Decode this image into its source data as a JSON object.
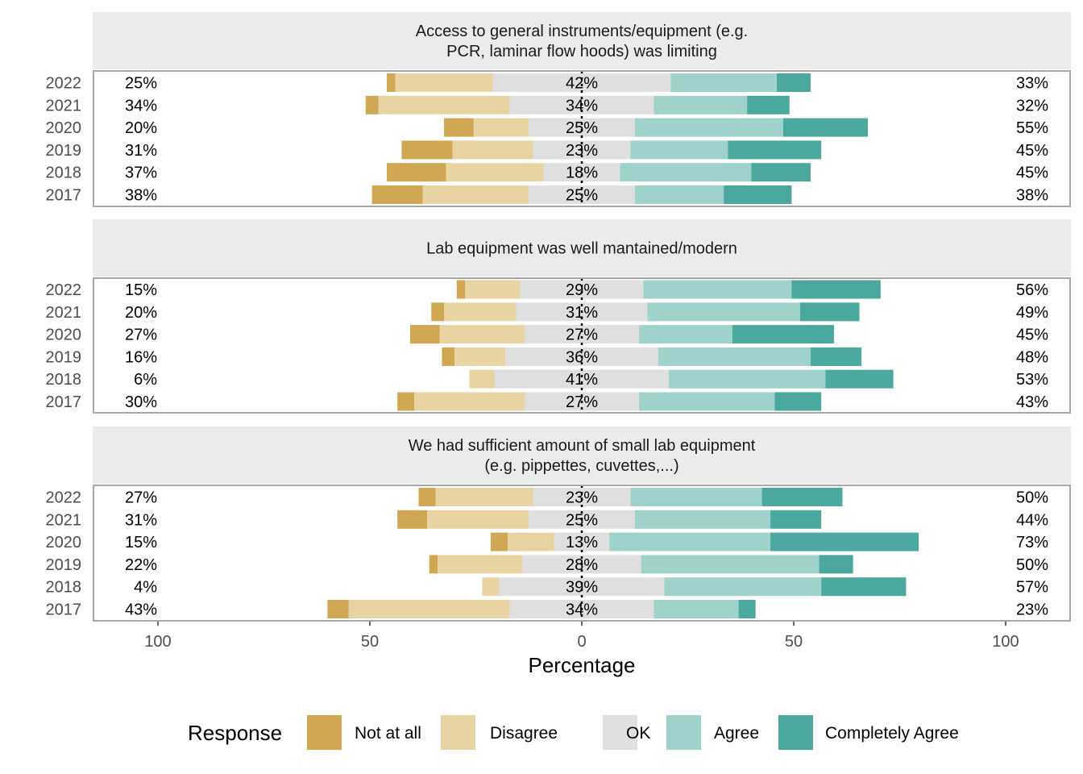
{
  "chart_data": {
    "type": "bar",
    "subtype": "diverging-stacked-likert",
    "xlabel": "Percentage",
    "x_ticks": [
      "100",
      "50",
      "0",
      "50",
      "100"
    ],
    "xlim": [
      -100,
      100
    ],
    "grid": true,
    "legend": {
      "title": "Response",
      "position": "bottom",
      "items": [
        {
          "label": "Not at all",
          "color": "#D0A753"
        },
        {
          "label": "Disagree",
          "color": "#E8D3A2"
        },
        {
          "label": "OK",
          "color": "#DFDFDF"
        },
        {
          "label": "Agree",
          "color": "#9FD2CA"
        },
        {
          "label": "Completely Agree",
          "color": "#4BA89C"
        }
      ]
    },
    "panels": [
      {
        "title": [
          "Access to general instruments/equipment (e.g.",
          "PCR, laminar flow hoods) was limiting"
        ],
        "rows": [
          {
            "year": "2022",
            "not_at_all": 2,
            "disagree": 23,
            "ok": 42,
            "agree": 25,
            "completely_agree": 8,
            "left_label": "25%",
            "center_label": "42%",
            "right_label": "33%"
          },
          {
            "year": "2021",
            "not_at_all": 3,
            "disagree": 31,
            "ok": 34,
            "agree": 22,
            "completely_agree": 10,
            "left_label": "34%",
            "center_label": "34%",
            "right_label": "32%"
          },
          {
            "year": "2020",
            "not_at_all": 7,
            "disagree": 13,
            "ok": 25,
            "agree": 35,
            "completely_agree": 20,
            "left_label": "20%",
            "center_label": "25%",
            "right_label": "55%"
          },
          {
            "year": "2019",
            "not_at_all": 12,
            "disagree": 19,
            "ok": 23,
            "agree": 23,
            "completely_agree": 22,
            "left_label": "31%",
            "center_label": "23%",
            "right_label": "45%"
          },
          {
            "year": "2018",
            "not_at_all": 14,
            "disagree": 23,
            "ok": 18,
            "agree": 31,
            "completely_agree": 14,
            "left_label": "37%",
            "center_label": "18%",
            "right_label": "45%"
          },
          {
            "year": "2017",
            "not_at_all": 12,
            "disagree": 25,
            "ok": 25,
            "agree": 21,
            "completely_agree": 16,
            "left_label": "38%",
            "center_label": "25%",
            "right_label": "38%"
          }
        ]
      },
      {
        "title": [
          "Lab equipment was well mantained/modern"
        ],
        "rows": [
          {
            "year": "2022",
            "not_at_all": 2,
            "disagree": 13,
            "ok": 29,
            "agree": 35,
            "completely_agree": 21,
            "left_label": "15%",
            "center_label": "29%",
            "right_label": "56%"
          },
          {
            "year": "2021",
            "not_at_all": 3,
            "disagree": 17,
            "ok": 31,
            "agree": 36,
            "completely_agree": 14,
            "left_label": "20%",
            "center_label": "31%",
            "right_label": "49%"
          },
          {
            "year": "2020",
            "not_at_all": 7,
            "disagree": 20,
            "ok": 27,
            "agree": 22,
            "completely_agree": 24,
            "left_label": "27%",
            "center_label": "27%",
            "right_label": "45%"
          },
          {
            "year": "2019",
            "not_at_all": 3,
            "disagree": 12,
            "ok": 36,
            "agree": 36,
            "completely_agree": 12,
            "left_label": "16%",
            "center_label": "36%",
            "right_label": "48%"
          },
          {
            "year": "2018",
            "not_at_all": 0,
            "disagree": 6,
            "ok": 41,
            "agree": 37,
            "completely_agree": 16,
            "left_label": "6%",
            "center_label": "41%",
            "right_label": "53%"
          },
          {
            "year": "2017",
            "not_at_all": 4,
            "disagree": 26,
            "ok": 27,
            "agree": 32,
            "completely_agree": 11,
            "left_label": "30%",
            "center_label": "27%",
            "right_label": "43%"
          }
        ]
      },
      {
        "title": [
          "We had sufficient amount of small lab equipment",
          "(e.g. pippettes, cuvettes,...)"
        ],
        "rows": [
          {
            "year": "2022",
            "not_at_all": 4,
            "disagree": 23,
            "ok": 23,
            "agree": 31,
            "completely_agree": 19,
            "left_label": "27%",
            "center_label": "23%",
            "right_label": "50%"
          },
          {
            "year": "2021",
            "not_at_all": 7,
            "disagree": 24,
            "ok": 25,
            "agree": 32,
            "completely_agree": 12,
            "left_label": "31%",
            "center_label": "25%",
            "right_label": "44%"
          },
          {
            "year": "2020",
            "not_at_all": 4,
            "disagree": 11,
            "ok": 13,
            "agree": 38,
            "completely_agree": 35,
            "left_label": "15%",
            "center_label": "13%",
            "right_label": "73%"
          },
          {
            "year": "2019",
            "not_at_all": 2,
            "disagree": 20,
            "ok": 28,
            "agree": 42,
            "completely_agree": 8,
            "left_label": "22%",
            "center_label": "28%",
            "right_label": "50%"
          },
          {
            "year": "2018",
            "not_at_all": 0,
            "disagree": 4,
            "ok": 39,
            "agree": 37,
            "completely_agree": 20,
            "left_label": "4%",
            "center_label": "39%",
            "right_label": "57%"
          },
          {
            "year": "2017",
            "not_at_all": 5,
            "disagree": 38,
            "ok": 34,
            "agree": 20,
            "completely_agree": 4,
            "left_label": "43%",
            "center_label": "34%",
            "right_label": "23%"
          }
        ]
      }
    ]
  }
}
